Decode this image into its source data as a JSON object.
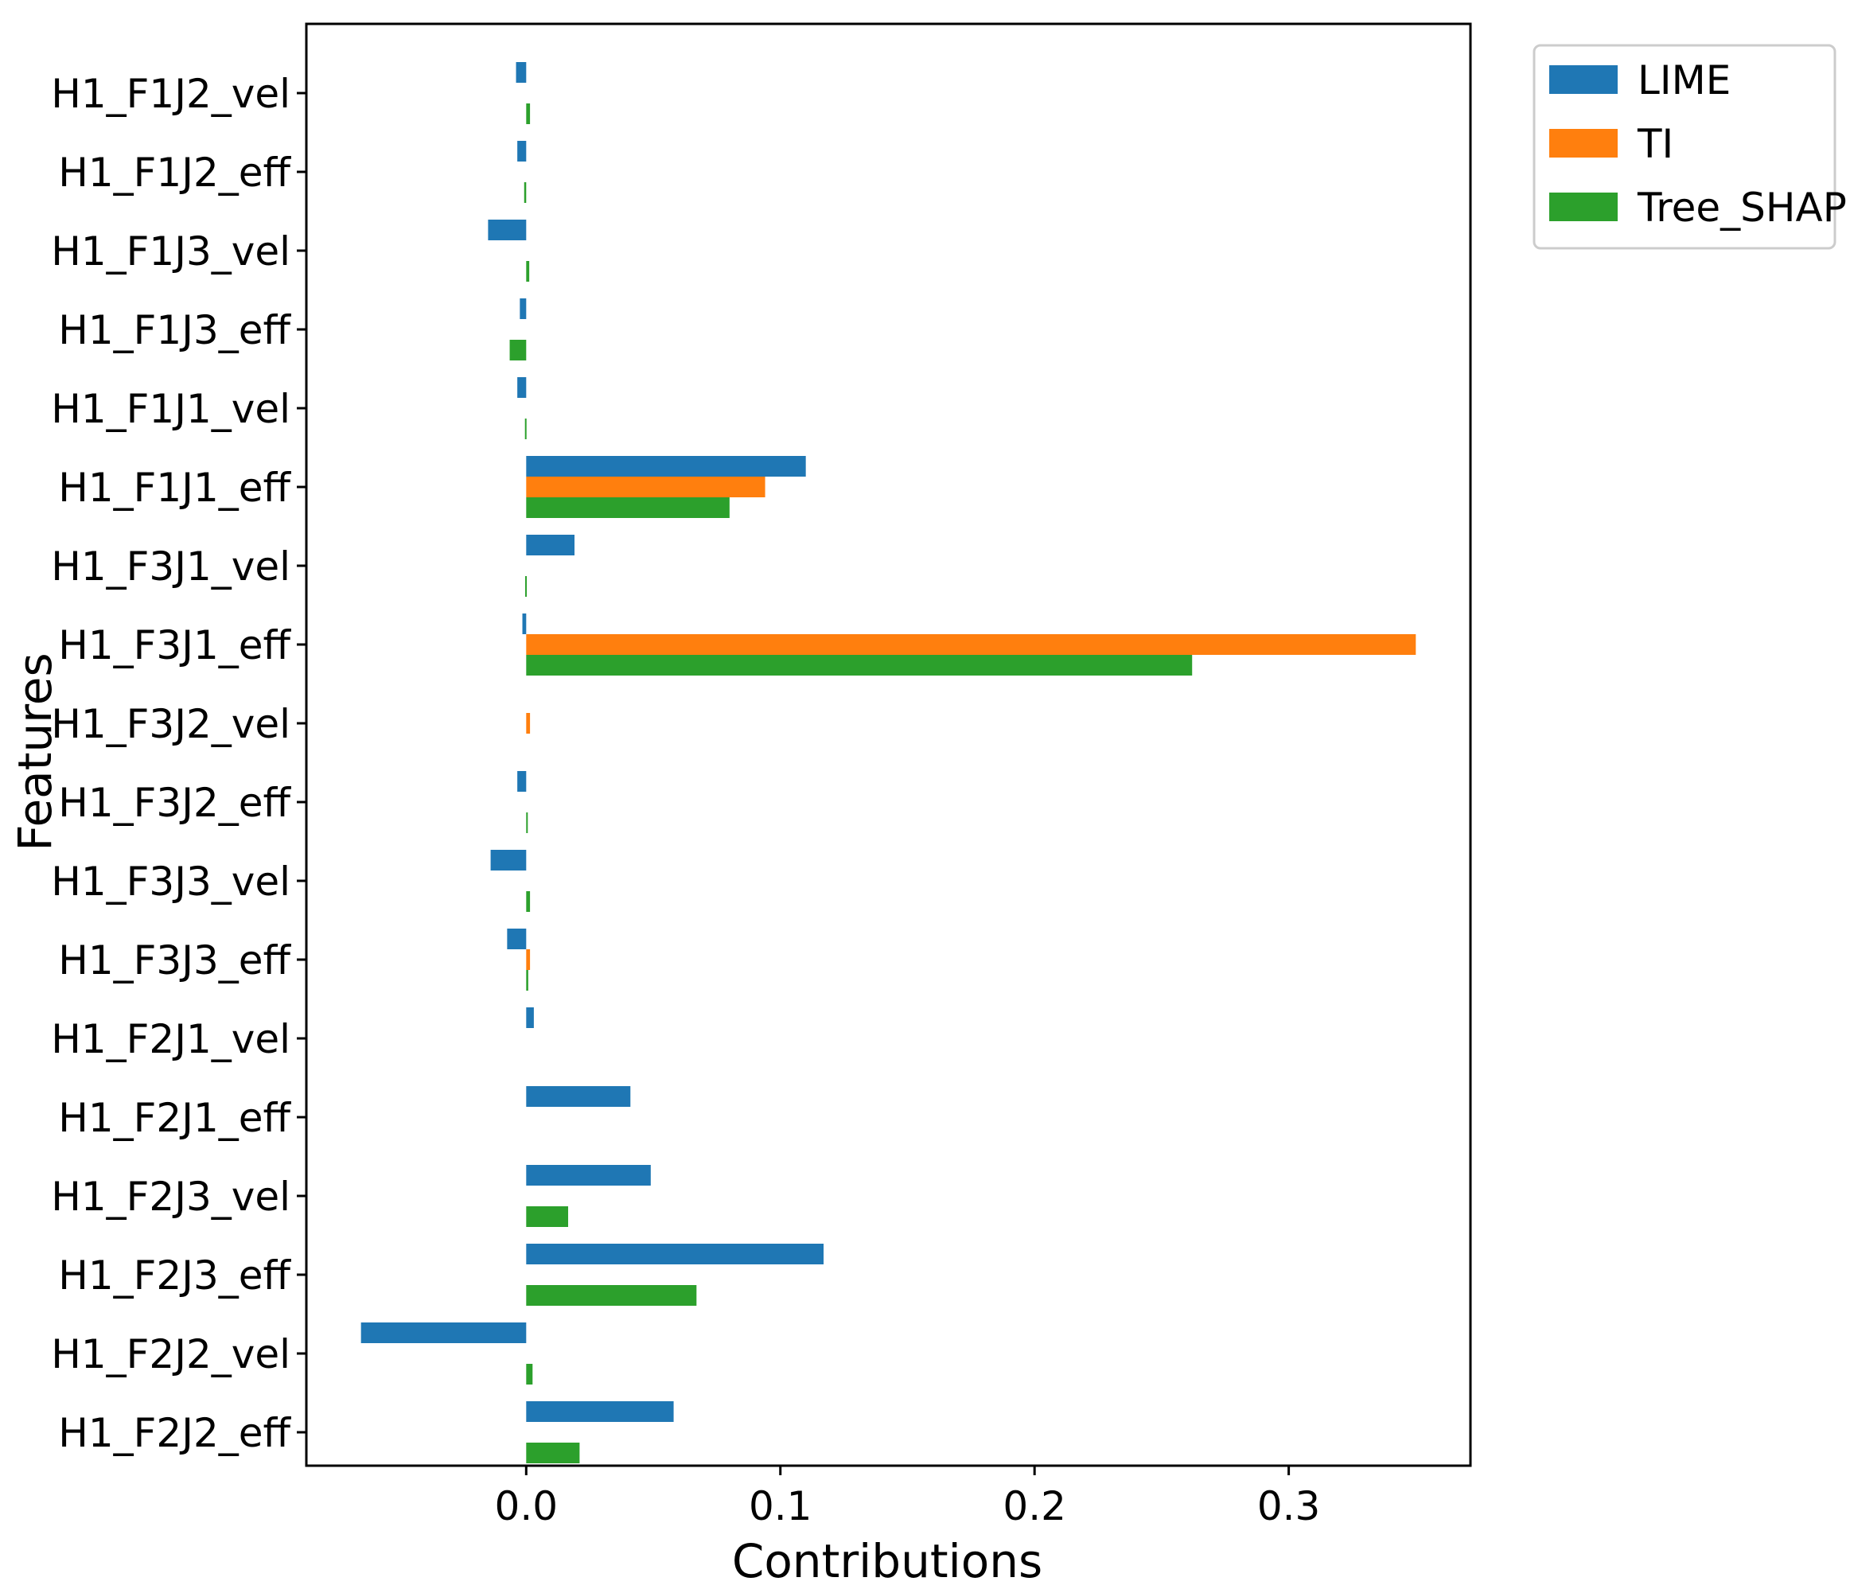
{
  "chart_data": {
    "type": "bar",
    "orientation": "horizontal",
    "xlabel": "Contributions",
    "ylabel": "Features",
    "xlim": [
      -0.0865,
      0.3715
    ],
    "xticks": [
      0.0,
      0.1,
      0.2,
      0.3
    ],
    "xtick_labels": [
      "0.0",
      "0.1",
      "0.2",
      "0.3"
    ],
    "grid": false,
    "legend_placement": "outside-top-right",
    "categories": [
      "H1_F1J2_vel",
      "H1_F1J2_eff",
      "H1_F1J3_vel",
      "H1_F1J3_eff",
      "H1_F1J1_vel",
      "H1_F1J1_eff",
      "H1_F3J1_vel",
      "H1_F3J1_eff",
      "H1_F3J2_vel",
      "H1_F3J2_eff",
      "H1_F3J3_vel",
      "H1_F3J3_eff",
      "H1_F2J1_vel",
      "H1_F2J1_eff",
      "H1_F2J3_vel",
      "H1_F2J3_eff",
      "H1_F2J2_vel",
      "H1_F2J2_eff"
    ],
    "series": [
      {
        "name": "LIME",
        "color": "#1f77b4",
        "values": [
          -0.004,
          -0.0035,
          -0.015,
          -0.0025,
          -0.0035,
          0.11,
          0.019,
          -0.0015,
          0.0,
          -0.0035,
          -0.014,
          -0.0075,
          0.003,
          0.041,
          0.049,
          0.117,
          -0.065,
          0.058
        ]
      },
      {
        "name": "TI",
        "color": "#ff7f0e",
        "values": [
          0.0,
          0.0,
          0.0,
          0.0,
          0.0,
          0.094,
          0.0,
          0.35,
          0.0015,
          0.0,
          0.0,
          0.0015,
          0.0,
          0.0,
          0.0,
          0.0,
          0.0,
          0.0
        ]
      },
      {
        "name": "Tree_SHAP",
        "color": "#2ca02c",
        "values": [
          0.0015,
          -0.0008,
          0.0012,
          -0.0065,
          -0.0005,
          0.08,
          -0.0004,
          0.262,
          0.0,
          0.0006,
          0.0015,
          0.0008,
          0.0,
          0.0,
          0.0165,
          0.067,
          0.0025,
          0.021
        ]
      }
    ]
  }
}
